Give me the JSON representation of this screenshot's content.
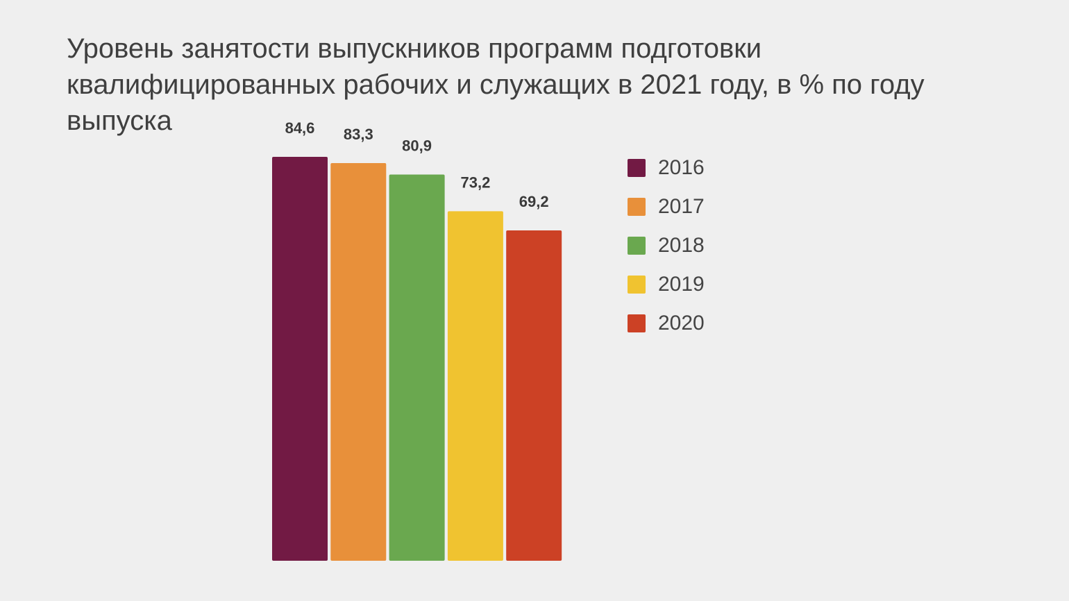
{
  "title": "Уровень занятости выпускников программ подготовки квалифицированных рабочих и служащих в 2021 году, в % по году выпуска",
  "chart_data": {
    "type": "bar",
    "title": "Уровень занятости выпускников программ подготовки квалифицированных рабочих и служащих в 2021 году, в % по году выпуска",
    "xlabel": "",
    "ylabel": "",
    "ylim": [
      0,
      100
    ],
    "grid": false,
    "legend_position": "right",
    "categories": [
      "2016",
      "2017",
      "2018",
      "2019",
      "2020"
    ],
    "values": [
      84.6,
      83.3,
      80.9,
      73.2,
      69.2
    ],
    "value_labels": [
      "84,6",
      "83,3",
      "80,9",
      "73,2",
      "69,2"
    ],
    "colors": [
      "#721a44",
      "#e8903a",
      "#6aa84f",
      "#f0c330",
      "#cc4125"
    ]
  }
}
